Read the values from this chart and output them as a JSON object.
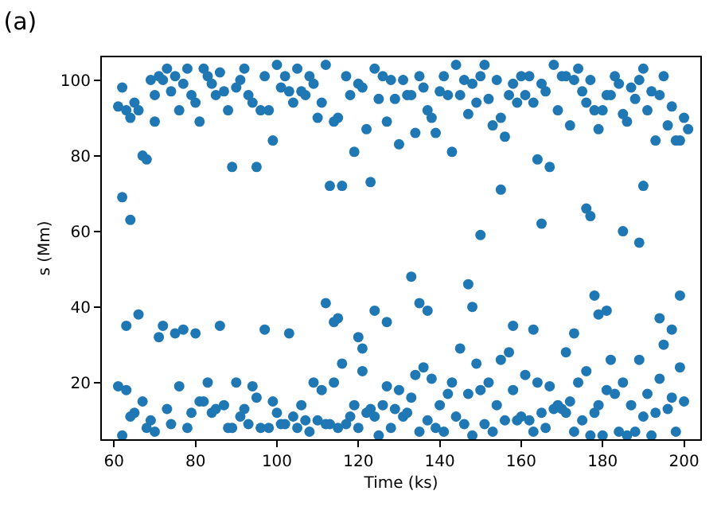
{
  "chart_data": {
    "type": "scatter",
    "title": "(a)",
    "xlabel": "Time (ks)",
    "ylabel": "s (Mm)",
    "xlim": [
      57,
      204
    ],
    "ylim": [
      5,
      106
    ],
    "xticks": [
      60,
      80,
      100,
      120,
      140,
      160,
      180,
      200
    ],
    "yticks": [
      20,
      40,
      60,
      80,
      100
    ],
    "marker": "circle",
    "series": [
      {
        "color": "#1f77b4",
        "x": [
          61,
          62,
          63,
          64,
          65,
          66,
          67,
          68,
          69,
          70,
          70,
          71,
          72,
          73,
          74,
          75,
          76,
          77,
          78,
          79,
          80,
          81,
          82,
          83,
          84,
          85,
          86,
          87,
          88,
          89,
          90,
          91,
          92,
          93,
          94,
          95,
          96,
          97,
          98,
          99,
          100,
          101,
          102,
          103,
          104,
          105,
          106,
          107,
          108,
          109,
          110,
          111,
          112,
          113,
          114,
          115,
          116,
          117,
          118,
          119,
          120,
          121,
          122,
          123,
          124,
          125,
          126,
          127,
          128,
          129,
          130,
          131,
          132,
          133,
          134,
          135,
          136,
          137,
          138,
          139,
          140,
          141,
          142,
          143,
          144,
          145,
          146,
          147,
          148,
          149,
          150,
          151,
          152,
          153,
          154,
          155,
          156,
          157,
          158,
          159,
          160,
          161,
          162,
          163,
          164,
          165,
          166,
          167,
          168,
          169,
          170,
          171,
          172,
          173,
          174,
          175,
          176,
          177,
          178,
          179,
          180,
          181,
          182,
          183,
          184,
          185,
          186,
          187,
          188,
          189,
          190,
          191,
          192,
          193,
          194,
          195,
          196,
          197,
          198,
          199,
          200,
          201
        ],
        "values": [
          93,
          98,
          92,
          90,
          94,
          92,
          80,
          79,
          100,
          96,
          89,
          101,
          100,
          103,
          97,
          101,
          92,
          99,
          103,
          96,
          94,
          89,
          103,
          101,
          99,
          96,
          102,
          97,
          92,
          77,
          98,
          100,
          103,
          96,
          94,
          77,
          92,
          101,
          92,
          84,
          104,
          98,
          101,
          97,
          94,
          103,
          97,
          96,
          101,
          99,
          90,
          94,
          104,
          72,
          89,
          90,
          72,
          101,
          96,
          81,
          99,
          98,
          87,
          73,
          103,
          95,
          101,
          89,
          100,
          95,
          83,
          100,
          96,
          96,
          86,
          101,
          98,
          92,
          90,
          86,
          97,
          101,
          96,
          81,
          104,
          96,
          100,
          91,
          99,
          94,
          101,
          104,
          95,
          88,
          100,
          90,
          85,
          96,
          99,
          94,
          101,
          96,
          101,
          94,
          79,
          99,
          97,
          77,
          104,
          92,
          101,
          101,
          88,
          100,
          103,
          97,
          94,
          100,
          92,
          87,
          92,
          96,
          96,
          101,
          99,
          91,
          89,
          98,
          95,
          100,
          103,
          92,
          97,
          84,
          96,
          101,
          88,
          93,
          84,
          84,
          90,
          87
        ]
      },
      {
        "color": "#1f77b4",
        "x": [
          62,
          64,
          112,
          114,
          115,
          120,
          121,
          124,
          127,
          133,
          135,
          137,
          147,
          148,
          150,
          155,
          158,
          163,
          165,
          171,
          173,
          176,
          177,
          178,
          179,
          181,
          185,
          189,
          190,
          194,
          197,
          199
        ],
        "values": [
          69,
          63,
          41,
          36,
          37,
          32,
          29,
          39,
          36,
          48,
          41,
          39,
          46,
          40,
          59,
          71,
          35,
          34,
          62,
          28,
          33,
          66,
          64,
          43,
          38,
          39,
          60,
          57,
          72,
          37,
          34,
          43
        ]
      },
      {
        "color": "#1f77b4",
        "x": [
          61,
          62,
          63,
          63,
          64,
          65,
          66,
          67,
          68,
          69,
          70,
          71,
          72,
          73,
          74,
          75,
          76,
          77,
          78,
          79,
          80,
          81,
          82,
          83,
          84,
          85,
          86,
          87,
          88,
          89,
          90,
          91,
          92,
          93,
          94,
          95,
          96,
          97,
          98,
          99,
          100,
          101,
          102,
          103,
          104,
          105,
          106,
          107,
          108,
          109,
          110,
          111,
          112,
          113,
          114,
          115,
          116,
          117,
          118,
          119,
          120,
          121,
          122,
          123,
          124,
          125,
          126,
          127,
          128,
          129,
          130,
          131,
          132,
          133,
          134,
          135,
          136,
          137,
          138,
          139,
          140,
          141,
          142,
          143,
          144,
          145,
          146,
          147,
          148,
          149,
          150,
          151,
          152,
          153,
          154,
          155,
          156,
          157,
          158,
          159,
          160,
          161,
          162,
          163,
          164,
          165,
          166,
          167,
          168,
          169,
          170,
          171,
          172,
          173,
          174,
          175,
          176,
          177,
          178,
          179,
          180,
          181,
          182,
          183,
          184,
          185,
          186,
          187,
          188,
          189,
          190,
          191,
          192,
          193,
          194,
          195,
          196,
          197,
          198,
          199,
          200
        ],
        "values": [
          19,
          6,
          35,
          18,
          11,
          12,
          38,
          15,
          8,
          10,
          7,
          32,
          35,
          13,
          9,
          33,
          19,
          34,
          8,
          12,
          33,
          15,
          15,
          20,
          12,
          13,
          35,
          14,
          8,
          8,
          20,
          11,
          13,
          9,
          19,
          16,
          8,
          34,
          8,
          15,
          12,
          9,
          9,
          33,
          11,
          8,
          14,
          10,
          7,
          20,
          10,
          18,
          9,
          9,
          20,
          8,
          25,
          9,
          11,
          14,
          8,
          23,
          12,
          13,
          11,
          6,
          14,
          19,
          8,
          13,
          18,
          11,
          12,
          16,
          22,
          7,
          24,
          10,
          21,
          8,
          14,
          7,
          17,
          20,
          11,
          29,
          9,
          17,
          6,
          25,
          18,
          9,
          20,
          7,
          14,
          26,
          10,
          28,
          18,
          10,
          11,
          22,
          10,
          7,
          20,
          12,
          8,
          19,
          13,
          14,
          13,
          12,
          15,
          7,
          20,
          10,
          23,
          6,
          12,
          14,
          6,
          18,
          26,
          17,
          7,
          20,
          6,
          14,
          7,
          26,
          11,
          17,
          6,
          12,
          21,
          30,
          13,
          16,
          7,
          24,
          15
        ]
      }
    ]
  }
}
